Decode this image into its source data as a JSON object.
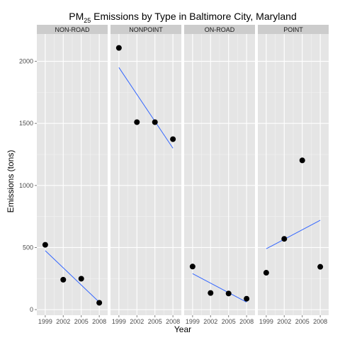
{
  "chart_data": {
    "type": "scatter",
    "title": "PM",
    "title_sub": "25",
    "title_rest": " Emissions by Type in Baltimore City, Maryland",
    "xlabel": "Year",
    "ylabel": "Emissions (tons)",
    "x_ticks": [
      1999,
      2002,
      2005,
      2008
    ],
    "y_ticks": [
      0,
      500,
      1000,
      1500,
      2000
    ],
    "xlim": [
      1997.6,
      2009.4
    ],
    "ylim": [
      -45,
      2220
    ],
    "grid": true,
    "facet_layout": "1x4",
    "colors": {
      "panel_bg": "#e5e5e5",
      "grid_major": "#ffffff",
      "strip_bg": "#cccccc",
      "point": "#000000",
      "trend_line": "#3366ff"
    },
    "panels": [
      {
        "label": "NON-ROAD",
        "points": [
          {
            "x": 1999,
            "y": 522
          },
          {
            "x": 2002,
            "y": 241
          },
          {
            "x": 2005,
            "y": 249
          },
          {
            "x": 2008,
            "y": 55
          }
        ],
        "trend": [
          {
            "x": 1999,
            "y": 475
          },
          {
            "x": 2008,
            "y": 60
          }
        ]
      },
      {
        "label": "NONPOINT",
        "points": [
          {
            "x": 1999,
            "y": 2108
          },
          {
            "x": 2002,
            "y": 1510
          },
          {
            "x": 2005,
            "y": 1510
          },
          {
            "x": 2008,
            "y": 1373
          }
        ],
        "trend": [
          {
            "x": 1999,
            "y": 1950
          },
          {
            "x": 2008,
            "y": 1300
          }
        ]
      },
      {
        "label": "ON-ROAD",
        "points": [
          {
            "x": 1999,
            "y": 347
          },
          {
            "x": 2002,
            "y": 134
          },
          {
            "x": 2005,
            "y": 130
          },
          {
            "x": 2008,
            "y": 88
          }
        ],
        "trend": [
          {
            "x": 1999,
            "y": 290
          },
          {
            "x": 2008,
            "y": 60
          }
        ]
      },
      {
        "label": "POINT",
        "points": [
          {
            "x": 1999,
            "y": 297
          },
          {
            "x": 2002,
            "y": 570
          },
          {
            "x": 2005,
            "y": 1202
          },
          {
            "x": 2008,
            "y": 345
          }
        ],
        "trend": [
          {
            "x": 1999,
            "y": 490
          },
          {
            "x": 2008,
            "y": 720
          }
        ]
      }
    ]
  }
}
